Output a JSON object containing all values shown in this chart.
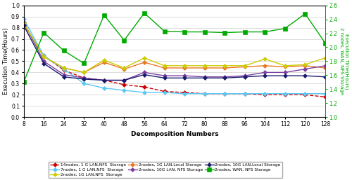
{
  "x": [
    8,
    16,
    24,
    32,
    40,
    48,
    56,
    64,
    72,
    80,
    88,
    96,
    104,
    112,
    120,
    128
  ],
  "series_left": [
    {
      "key": "14nodes_1GLAN_NFS",
      "label": "14nodes, 1 G LAN,NFS  Storage",
      "color": "#cc0000",
      "linestyle": "--",
      "marker": "D",
      "markersize": 3,
      "values": [
        0.83,
        0.55,
        0.42,
        0.35,
        0.33,
        0.29,
        0.27,
        0.23,
        0.22,
        0.21,
        0.21,
        0.21,
        0.2,
        0.2,
        0.2,
        0.18
      ]
    },
    {
      "key": "2nodes_1GLAN_Local",
      "label": "2nodes, 1G LAN,Local Storage",
      "color": "#e87722",
      "linestyle": "-",
      "marker": "D",
      "markersize": 3,
      "values": [
        0.84,
        0.54,
        0.44,
        0.4,
        0.49,
        0.43,
        0.49,
        0.44,
        0.44,
        0.44,
        0.44,
        0.45,
        0.46,
        0.45,
        0.46,
        0.44
      ]
    },
    {
      "key": "7nodes_1GLAN_NFS",
      "label": "7nodes, 1 G LAN,NFS  Storage",
      "color": "#5bc8f5",
      "linestyle": "-",
      "marker": "D",
      "markersize": 3,
      "values": [
        0.88,
        0.55,
        0.43,
        0.3,
        0.26,
        0.24,
        0.22,
        0.22,
        0.21,
        0.21,
        0.21,
        0.21,
        0.21,
        0.21,
        0.21,
        0.21
      ]
    },
    {
      "key": "2nodes_10GLAN_NFS",
      "label": "2nodes, 10G LAN, NFS Storage",
      "color": "#7b3fa0",
      "linestyle": "-",
      "marker": "D",
      "markersize": 3,
      "values": [
        0.85,
        0.5,
        0.38,
        0.35,
        0.33,
        0.33,
        0.4,
        0.37,
        0.37,
        0.36,
        0.36,
        0.37,
        0.4,
        0.4,
        0.43,
        0.46
      ]
    },
    {
      "key": "2nodes_1GLAN_NFS",
      "label": "2nodes, 1G LAN,NFS  Storage",
      "color": "#cccc00",
      "linestyle": "-",
      "marker": "D",
      "markersize": 3,
      "values": [
        0.84,
        0.54,
        0.44,
        0.4,
        0.51,
        0.44,
        0.53,
        0.46,
        0.46,
        0.46,
        0.46,
        0.46,
        0.52,
        0.46,
        0.47,
        0.53
      ]
    },
    {
      "key": "2nodes_10GLAN_Local",
      "label": "2nodes, 10G LAN,Local Storage",
      "color": "#1a1a6e",
      "linestyle": "-",
      "marker": "D",
      "markersize": 3,
      "values": [
        0.82,
        0.48,
        0.36,
        0.34,
        0.33,
        0.33,
        0.38,
        0.35,
        0.35,
        0.35,
        0.35,
        0.36,
        0.37,
        0.37,
        0.37,
        0.36
      ]
    }
  ],
  "series_right": [
    {
      "key": "2nodes_WAN_NFS",
      "label": "2nodes, WAN, NFS Storage",
      "color": "#00aa00",
      "linestyle": "-",
      "marker": "s",
      "markersize": 4,
      "values": [
        1.5,
        2.21,
        1.95,
        1.77,
        2.46,
        2.1,
        2.49,
        2.23,
        2.22,
        2.22,
        2.21,
        2.22,
        2.22,
        2.27,
        2.48,
        2.06
      ]
    }
  ],
  "xlabel": "Decomposition Numbers",
  "ylabel_left": "Execution Time(Hours)",
  "ylabel_right": "Execution Time(Hours)\n2 nodes, WAN, NFS Storage",
  "ylim_left": [
    0,
    1.0
  ],
  "ylim_right": [
    1.0,
    2.6
  ],
  "yticks_left": [
    0,
    0.1,
    0.2,
    0.3,
    0.4,
    0.5,
    0.6,
    0.7,
    0.8,
    0.9,
    1.0
  ],
  "yticks_right": [
    1.0,
    1.2,
    1.4,
    1.6,
    1.8,
    2.0,
    2.2,
    2.4,
    2.6
  ],
  "xticks": [
    8,
    16,
    24,
    32,
    40,
    48,
    56,
    64,
    72,
    80,
    88,
    96,
    104,
    112,
    120,
    128
  ],
  "background_color": "#ffffff",
  "grid_color": "#d0d0d0",
  "legend_order": [
    "14nodes_1GLAN_NFS",
    "7nodes_1GLAN_NFS",
    "2nodes_1GLAN_NFS",
    "2nodes_1GLAN_Local",
    "2nodes_10GLAN_NFS",
    "2nodes_10GLAN_Local",
    "2nodes_WAN_NFS"
  ]
}
